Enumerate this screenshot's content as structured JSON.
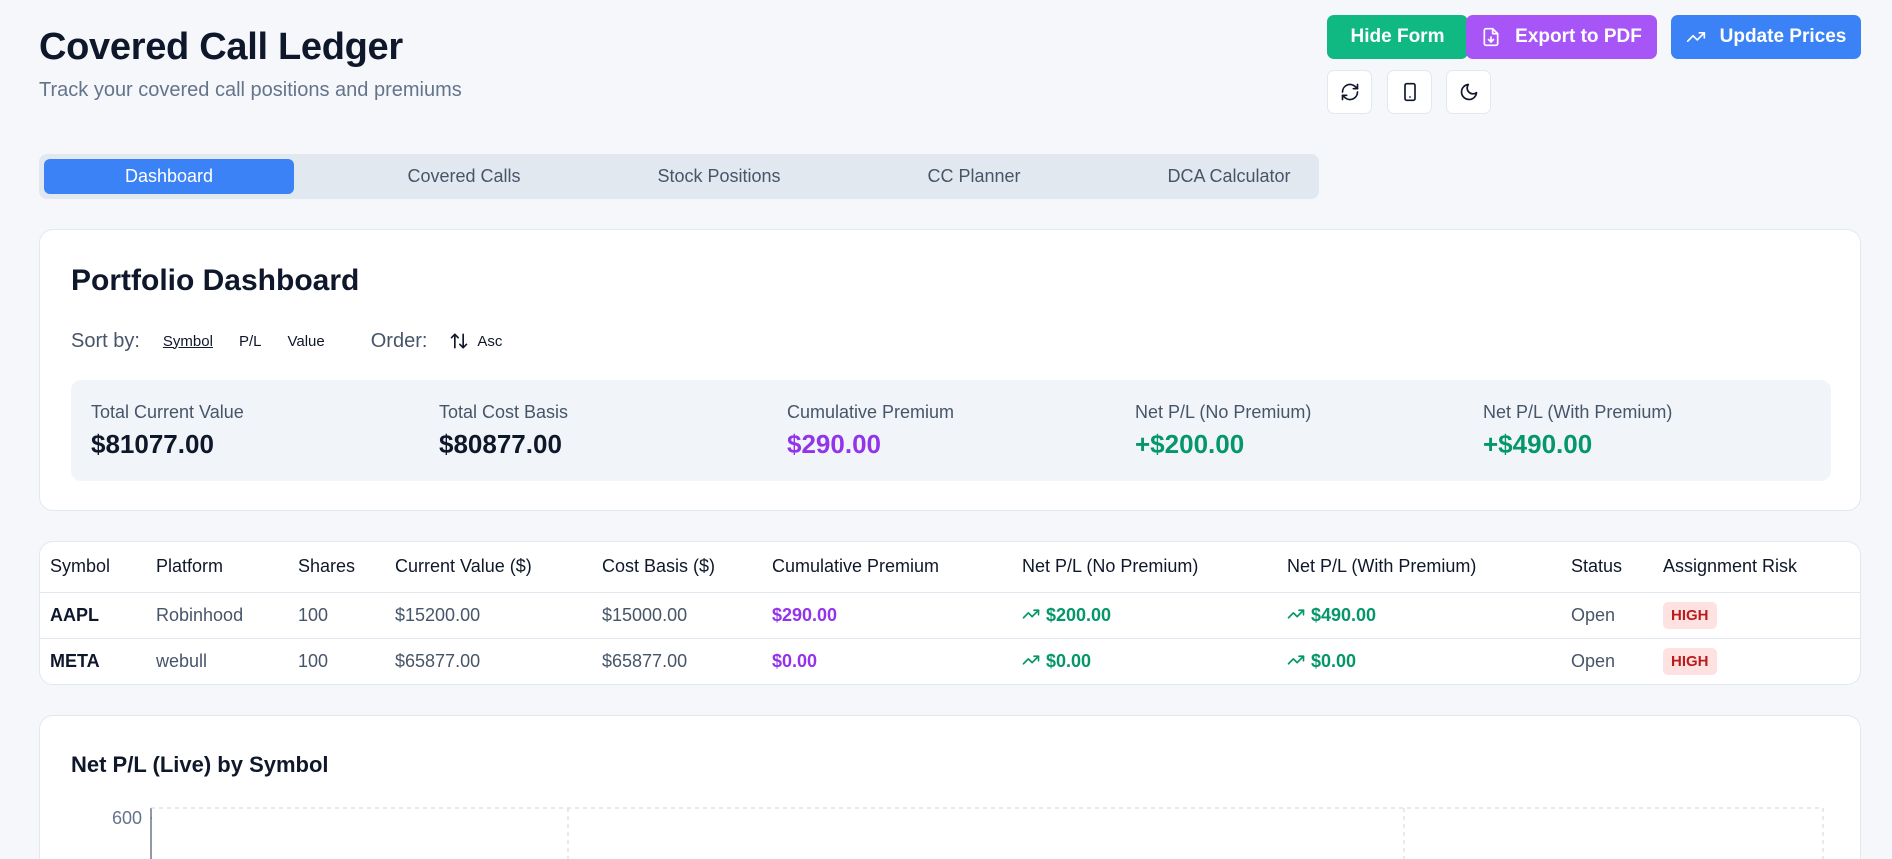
{
  "header": {
    "title": "Covered Call Ledger",
    "subtitle": "Track your covered call positions and premiums",
    "buttons": {
      "hide_form": "Hide Form",
      "export_pdf": "Export to PDF",
      "update_prices": "Update Prices"
    },
    "icon_buttons": [
      "refresh-icon",
      "mobile-icon",
      "moon-icon"
    ]
  },
  "tabs": [
    {
      "label": "Dashboard",
      "active": true
    },
    {
      "label": "Covered Calls",
      "active": false
    },
    {
      "label": "Stock Positions",
      "active": false
    },
    {
      "label": "CC Planner",
      "active": false
    },
    {
      "label": "DCA Calculator",
      "active": false
    }
  ],
  "dashboard": {
    "title": "Portfolio Dashboard",
    "sort_label": "Sort by:",
    "sort_options": [
      "Symbol",
      "P/L",
      "Value"
    ],
    "order_label": "Order:",
    "order_value": "Asc",
    "summary": [
      {
        "label": "Total Current Value",
        "value": "$81077.00"
      },
      {
        "label": "Total Cost Basis",
        "value": "$80877.00"
      },
      {
        "label": "Cumulative Premium",
        "value": "$290.00"
      },
      {
        "label": "Net P/L (No Premium)",
        "value": "+$200.00"
      },
      {
        "label": "Net P/L (With Premium)",
        "value": "+$490.00"
      }
    ]
  },
  "table": {
    "columns": [
      "Symbol",
      "Platform",
      "Shares",
      "Current Value ($)",
      "Cost Basis ($)",
      "Cumulative Premium",
      "Net P/L (No Premium)",
      "Net P/L (With Premium)",
      "Status",
      "Assignment Risk"
    ],
    "rows": [
      {
        "symbol": "AAPL",
        "platform": "Robinhood",
        "shares": "100",
        "current_value": "$15200.00",
        "cost_basis": "$15000.00",
        "premium": "$290.00",
        "net_no_premium": "$200.00",
        "net_with_premium": "$490.00",
        "status": "Open",
        "risk": "HIGH"
      },
      {
        "symbol": "META",
        "platform": "webull",
        "shares": "100",
        "current_value": "$65877.00",
        "cost_basis": "$65877.00",
        "premium": "$0.00",
        "net_no_premium": "$0.00",
        "net_with_premium": "$0.00",
        "status": "Open",
        "risk": "HIGH"
      }
    ]
  },
  "chart": {
    "title": "Net P/L (Live) by Symbol",
    "y_tick_top": "600"
  },
  "colors": {
    "primary": "#3b82f6",
    "success": "#10b981",
    "accent": "#a855f7",
    "premium": "#9333ea",
    "positive": "#059669",
    "risk_high_bg": "#fee2e2",
    "risk_high_text": "#b91c1c"
  }
}
